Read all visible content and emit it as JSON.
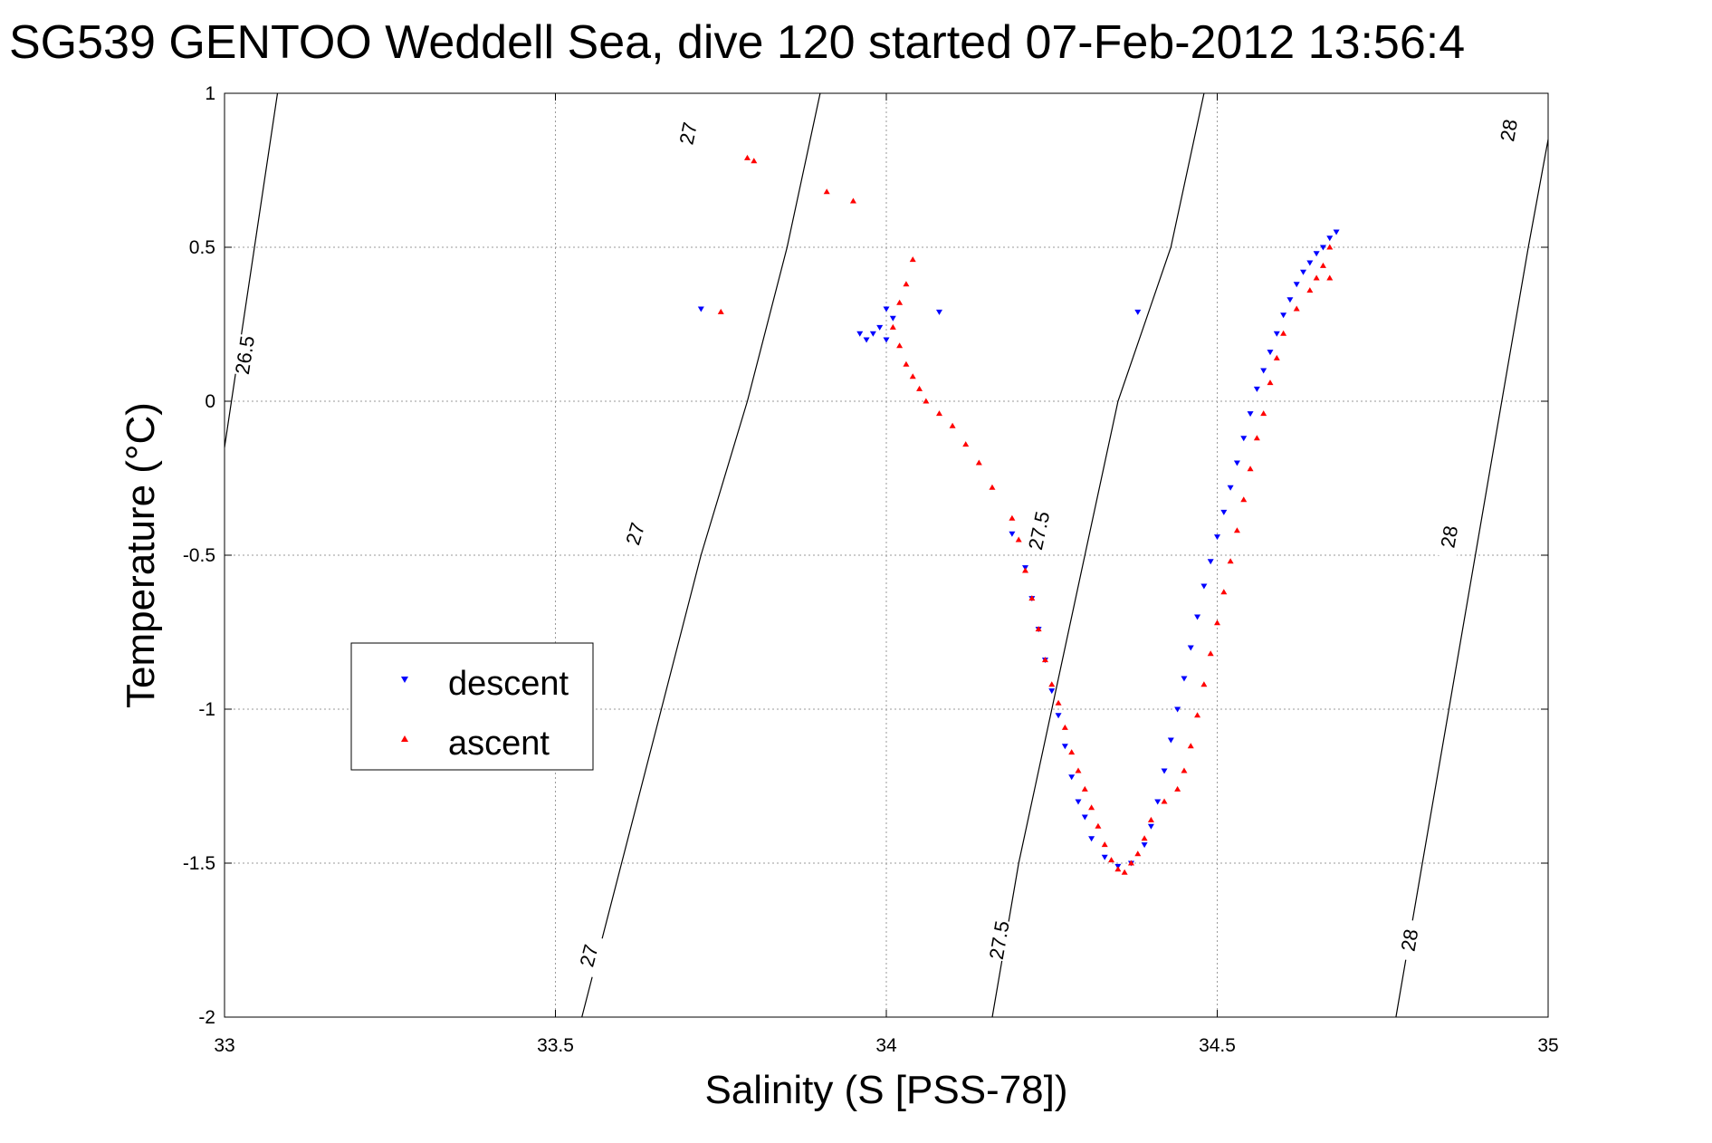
{
  "chart_data": {
    "type": "scatter",
    "title": "SG539 GENTOO Weddell Sea, dive 120 started 07-Feb-2012 13:56:4",
    "xlabel": "Salinity (S [PSS-78])",
    "ylabel": "Temperature (°C)",
    "xlim": [
      33,
      35
    ],
    "ylim": [
      -2,
      1
    ],
    "x_ticks": [
      33,
      33.5,
      34,
      34.5,
      35
    ],
    "y_ticks": [
      -2,
      -1.5,
      -1,
      -0.5,
      0,
      0.5,
      1
    ],
    "x_tick_labels": [
      "33",
      "33.5",
      "34",
      "34.5",
      "35"
    ],
    "y_tick_labels": [
      "-2",
      "-1.5",
      "-1",
      "-0.5",
      "0",
      "0.5",
      "1"
    ],
    "grid": true,
    "legend_position": "center-left",
    "series": [
      {
        "name": "descent",
        "color": "#0000ff",
        "marker": "triangle-down",
        "points": [
          [
            34.68,
            0.55
          ],
          [
            34.67,
            0.53
          ],
          [
            34.66,
            0.5
          ],
          [
            34.65,
            0.48
          ],
          [
            34.64,
            0.45
          ],
          [
            34.63,
            0.42
          ],
          [
            34.62,
            0.38
          ],
          [
            34.61,
            0.33
          ],
          [
            34.6,
            0.28
          ],
          [
            34.59,
            0.22
          ],
          [
            34.58,
            0.16
          ],
          [
            34.57,
            0.1
          ],
          [
            34.56,
            0.04
          ],
          [
            34.55,
            -0.04
          ],
          [
            34.54,
            -0.12
          ],
          [
            34.53,
            -0.2
          ],
          [
            34.52,
            -0.28
          ],
          [
            34.51,
            -0.36
          ],
          [
            34.5,
            -0.44
          ],
          [
            34.49,
            -0.52
          ],
          [
            34.48,
            -0.6
          ],
          [
            34.47,
            -0.7
          ],
          [
            34.46,
            -0.8
          ],
          [
            34.45,
            -0.9
          ],
          [
            34.44,
            -1.0
          ],
          [
            34.43,
            -1.1
          ],
          [
            34.42,
            -1.2
          ],
          [
            34.41,
            -1.3
          ],
          [
            34.4,
            -1.38
          ],
          [
            34.39,
            -1.44
          ],
          [
            34.37,
            -1.5
          ],
          [
            34.35,
            -1.51
          ],
          [
            34.33,
            -1.48
          ],
          [
            34.31,
            -1.42
          ],
          [
            34.3,
            -1.35
          ],
          [
            34.29,
            -1.3
          ],
          [
            34.28,
            -1.22
          ],
          [
            34.27,
            -1.12
          ],
          [
            34.26,
            -1.02
          ],
          [
            34.25,
            -0.94
          ],
          [
            34.24,
            -0.84
          ],
          [
            34.23,
            -0.74
          ],
          [
            34.22,
            -0.64
          ],
          [
            34.21,
            -0.54
          ],
          [
            34.19,
            -0.43
          ],
          [
            33.96,
            0.22
          ],
          [
            33.97,
            0.2
          ],
          [
            33.98,
            0.22
          ],
          [
            33.99,
            0.24
          ],
          [
            34.0,
            0.2
          ],
          [
            34.0,
            0.3
          ],
          [
            34.01,
            0.27
          ],
          [
            34.08,
            0.29
          ],
          [
            34.38,
            0.29
          ],
          [
            33.72,
            0.3
          ]
        ]
      },
      {
        "name": "ascent",
        "color": "#ff0000",
        "marker": "triangle-up",
        "points": [
          [
            34.67,
            0.4
          ],
          [
            34.67,
            0.5
          ],
          [
            34.66,
            0.44
          ],
          [
            34.65,
            0.4
          ],
          [
            34.64,
            0.36
          ],
          [
            34.62,
            0.3
          ],
          [
            34.6,
            0.22
          ],
          [
            34.59,
            0.14
          ],
          [
            34.58,
            0.06
          ],
          [
            34.57,
            -0.04
          ],
          [
            34.56,
            -0.12
          ],
          [
            34.55,
            -0.22
          ],
          [
            34.54,
            -0.32
          ],
          [
            34.53,
            -0.42
          ],
          [
            34.52,
            -0.52
          ],
          [
            34.51,
            -0.62
          ],
          [
            34.5,
            -0.72
          ],
          [
            34.49,
            -0.82
          ],
          [
            34.48,
            -0.92
          ],
          [
            34.47,
            -1.02
          ],
          [
            34.46,
            -1.12
          ],
          [
            34.45,
            -1.2
          ],
          [
            34.44,
            -1.26
          ],
          [
            34.42,
            -1.3
          ],
          [
            34.4,
            -1.36
          ],
          [
            34.39,
            -1.42
          ],
          [
            34.38,
            -1.47
          ],
          [
            34.37,
            -1.5
          ],
          [
            34.36,
            -1.53
          ],
          [
            34.35,
            -1.52
          ],
          [
            34.34,
            -1.49
          ],
          [
            34.33,
            -1.44
          ],
          [
            34.32,
            -1.38
          ],
          [
            34.31,
            -1.32
          ],
          [
            34.3,
            -1.26
          ],
          [
            34.29,
            -1.2
          ],
          [
            34.28,
            -1.14
          ],
          [
            34.27,
            -1.06
          ],
          [
            34.26,
            -0.98
          ],
          [
            34.25,
            -0.92
          ],
          [
            34.24,
            -0.84
          ],
          [
            34.23,
            -0.74
          ],
          [
            34.22,
            -0.64
          ],
          [
            34.21,
            -0.55
          ],
          [
            34.2,
            -0.45
          ],
          [
            34.19,
            -0.38
          ],
          [
            34.16,
            -0.28
          ],
          [
            34.14,
            -0.2
          ],
          [
            34.12,
            -0.14
          ],
          [
            34.1,
            -0.08
          ],
          [
            34.08,
            -0.04
          ],
          [
            34.06,
            0.0
          ],
          [
            34.05,
            0.04
          ],
          [
            34.04,
            0.08
          ],
          [
            34.03,
            0.12
          ],
          [
            34.02,
            0.18
          ],
          [
            34.01,
            0.24
          ],
          [
            34.02,
            0.32
          ],
          [
            34.03,
            0.38
          ],
          [
            34.04,
            0.46
          ],
          [
            33.79,
            0.79
          ],
          [
            33.8,
            0.78
          ],
          [
            33.91,
            0.68
          ],
          [
            33.95,
            0.65
          ],
          [
            33.75,
            0.29
          ]
        ]
      }
    ],
    "isopycnals": [
      {
        "label": "26.5",
        "path": [
          [
            33.0,
            -0.15
          ],
          [
            33.08,
            1.0
          ]
        ],
        "label_positions": [
          [
            33.03,
            0.15
          ]
        ]
      },
      {
        "label": "27",
        "path": [
          [
            33.54,
            -2.0
          ],
          [
            33.6,
            -1.5
          ],
          [
            33.66,
            -1.0
          ],
          [
            33.72,
            -0.5
          ],
          [
            33.79,
            0.0
          ],
          [
            33.85,
            0.5
          ],
          [
            33.9,
            1.0
          ]
        ],
        "label_positions": [
          [
            33.55,
            -1.8
          ],
          [
            33.62,
            -0.43
          ],
          [
            33.7,
            0.87
          ]
        ]
      },
      {
        "label": "27.5",
        "path": [
          [
            34.16,
            -2.0
          ],
          [
            34.2,
            -1.5
          ],
          [
            34.25,
            -1.0
          ],
          [
            34.3,
            -0.5
          ],
          [
            34.35,
            0.0
          ],
          [
            34.43,
            0.5
          ],
          [
            34.48,
            1.0
          ]
        ],
        "label_positions": [
          [
            34.17,
            -1.75
          ],
          [
            34.23,
            -0.42
          ]
        ]
      },
      {
        "label": "28",
        "path": [
          [
            34.77,
            -2.0
          ],
          [
            34.81,
            -1.5
          ],
          [
            34.85,
            -1.0
          ],
          [
            34.89,
            -0.5
          ],
          [
            34.93,
            0.0
          ],
          [
            34.97,
            0.5
          ],
          [
            35.0,
            0.85
          ]
        ],
        "label_positions": [
          [
            34.79,
            -1.75
          ],
          [
            34.85,
            -0.44
          ],
          [
            34.94,
            0.88
          ]
        ]
      }
    ]
  }
}
